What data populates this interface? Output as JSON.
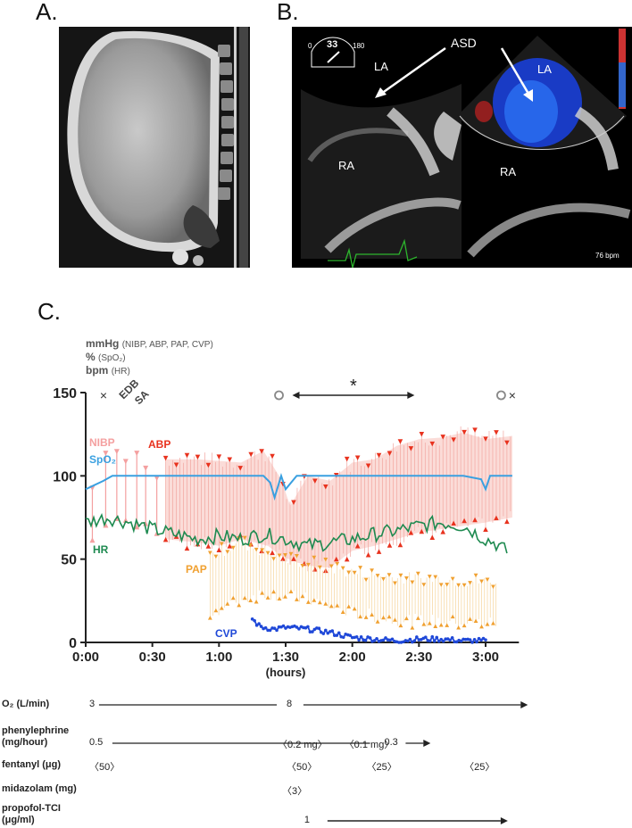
{
  "panels": {
    "a": "A.",
    "b": "B.",
    "c": "C."
  },
  "echo": {
    "asd_label": "ASD",
    "la_label": "LA",
    "ra_label": "RA",
    "angle_value": "33",
    "angle_min": "0",
    "angle_max": "180",
    "hr_readout": "76 bpm"
  },
  "units": {
    "mmhg": "mmHg",
    "mmhg_sub": "(NIBP, ABP, PAP, CVP)",
    "pct": "%",
    "pct_sub": "(SpO₂)",
    "bpm": "bpm",
    "bpm_sub": "(HR)"
  },
  "chart_data": {
    "type": "line",
    "xlabel": "(hours)",
    "x_ticks": [
      "0:00",
      "0:30",
      "1:00",
      "1:30",
      "2:00",
      "2:30",
      "3:00"
    ],
    "xlim_minutes": [
      0,
      195
    ],
    "ylim": [
      0,
      150
    ],
    "y_ticks": [
      0,
      50,
      100,
      150
    ],
    "annotations": {
      "start_mark": "×",
      "end_mark": "×",
      "edb": "EDB",
      "sa": "SA",
      "asterisk": "*",
      "circle_times_minutes": [
        87,
        187
      ],
      "interval_minutes": [
        93,
        148
      ]
    },
    "series": [
      {
        "name": "NIBP",
        "color": "#f4a0a0"
      },
      {
        "name": "SpO₂",
        "color": "#3aa0e0"
      },
      {
        "name": "ABP",
        "color": "#e8321e"
      },
      {
        "name": "HR",
        "color": "#1e8a50"
      },
      {
        "name": "PAP",
        "color": "#f0a030"
      },
      {
        "name": "CVP",
        "color": "#1f48d8"
      }
    ],
    "nibp": {
      "times": [
        3,
        9,
        14,
        18,
        23,
        27,
        32
      ],
      "systolic": [
        92,
        113,
        114,
        108,
        113,
        104,
        98
      ],
      "diastolic": [
        62,
        71,
        75,
        74,
        70,
        72,
        66
      ]
    },
    "abp": {
      "start": 36,
      "end": 192,
      "systolic_keypoints": [
        [
          36,
          110
        ],
        [
          50,
          110
        ],
        [
          70,
          108
        ],
        [
          80,
          115
        ],
        [
          88,
          98
        ],
        [
          92,
          82
        ],
        [
          100,
          100
        ],
        [
          110,
          97
        ],
        [
          120,
          108
        ],
        [
          130,
          110
        ],
        [
          140,
          118
        ],
        [
          150,
          122
        ],
        [
          160,
          123
        ],
        [
          170,
          126
        ],
        [
          180,
          122
        ],
        [
          192,
          124
        ]
      ],
      "diastolic_keypoints": [
        [
          36,
          62
        ],
        [
          50,
          60
        ],
        [
          60,
          58
        ],
        [
          70,
          62
        ],
        [
          82,
          58
        ],
        [
          88,
          52
        ],
        [
          95,
          48
        ],
        [
          105,
          45
        ],
        [
          110,
          45
        ],
        [
          120,
          55
        ],
        [
          130,
          58
        ],
        [
          140,
          62
        ],
        [
          150,
          66
        ],
        [
          160,
          68
        ],
        [
          170,
          70
        ],
        [
          180,
          72
        ],
        [
          192,
          75
        ]
      ]
    },
    "spo2": {
      "keypoints": [
        [
          0,
          92
        ],
        [
          8,
          97
        ],
        [
          12,
          100
        ],
        [
          80,
          100
        ],
        [
          83,
          96
        ],
        [
          85,
          87
        ],
        [
          88,
          100
        ],
        [
          90,
          92
        ],
        [
          95,
          100
        ],
        [
          170,
          100
        ],
        [
          178,
          98
        ],
        [
          180,
          92
        ],
        [
          182,
          100
        ],
        [
          192,
          100
        ]
      ]
    },
    "hr": {
      "keypoints": [
        [
          0,
          72
        ],
        [
          10,
          75
        ],
        [
          20,
          72
        ],
        [
          30,
          68
        ],
        [
          40,
          65
        ],
        [
          50,
          62
        ],
        [
          60,
          64
        ],
        [
          70,
          62
        ],
        [
          80,
          65
        ],
        [
          90,
          62
        ],
        [
          100,
          58
        ],
        [
          110,
          60
        ],
        [
          120,
          62
        ],
        [
          130,
          65
        ],
        [
          140,
          67
        ],
        [
          150,
          70
        ],
        [
          160,
          72
        ],
        [
          170,
          70
        ],
        [
          180,
          62
        ],
        [
          184,
          60
        ],
        [
          190,
          54
        ]
      ]
    },
    "pap": {
      "start": 56,
      "end": 185,
      "systolic_keypoints": [
        [
          56,
          52
        ],
        [
          70,
          60
        ],
        [
          80,
          55
        ],
        [
          90,
          50
        ],
        [
          100,
          48
        ],
        [
          110,
          45
        ],
        [
          120,
          42
        ],
        [
          130,
          40
        ],
        [
          140,
          39
        ],
        [
          150,
          38
        ],
        [
          160,
          38
        ],
        [
          170,
          37
        ],
        [
          185,
          36
        ]
      ],
      "diastolic_keypoints": [
        [
          56,
          18
        ],
        [
          70,
          26
        ],
        [
          80,
          30
        ],
        [
          90,
          28
        ],
        [
          100,
          26
        ],
        [
          110,
          22
        ],
        [
          120,
          18
        ],
        [
          130,
          16
        ],
        [
          140,
          14
        ],
        [
          150,
          13
        ],
        [
          160,
          13
        ],
        [
          170,
          12
        ],
        [
          185,
          12
        ]
      ]
    },
    "cvp": {
      "keypoints": [
        [
          75,
          14
        ],
        [
          78,
          10
        ],
        [
          80,
          9
        ],
        [
          85,
          8
        ],
        [
          90,
          9
        ],
        [
          100,
          8
        ],
        [
          110,
          6
        ],
        [
          120,
          3
        ],
        [
          130,
          2
        ],
        [
          140,
          1
        ],
        [
          150,
          2
        ],
        [
          160,
          2
        ],
        [
          170,
          1
        ],
        [
          180,
          1
        ]
      ]
    }
  },
  "medications": [
    {
      "label": "O₂ (L/min)",
      "values": [
        {
          "text": "3",
          "minute": 0
        },
        {
          "text": "8",
          "minute": 92
        }
      ],
      "arrow_from": 0,
      "arrow_to": 200
    },
    {
      "label": "phenylephrine\n(mg/hour)",
      "values": [
        {
          "text": "0.5",
          "minute": 0
        },
        {
          "text": "〈0.2 mg〉",
          "minute": 88
        },
        {
          "text": "〈0.1 mg〉",
          "minute": 118
        },
        {
          "text": "0.3",
          "minute": 136
        }
      ],
      "arrow_from": 20,
      "arrow_to": 160
    },
    {
      "label": "fentanyl (μg)",
      "values": [
        {
          "text": "〈50〉",
          "minute": 0
        },
        {
          "text": "〈50〉",
          "minute": 92
        },
        {
          "text": "〈25〉",
          "minute": 128
        },
        {
          "text": "〈25〉",
          "minute": 172
        }
      ]
    },
    {
      "label": "midazolam (mg)",
      "values": [
        {
          "text": "〈3〉",
          "minute": 90
        }
      ]
    },
    {
      "label": "propofol-TCI\n(μg/ml)",
      "values": [
        {
          "text": "1",
          "minute": 100
        }
      ],
      "arrow_from": 104,
      "arrow_to": 190
    }
  ]
}
